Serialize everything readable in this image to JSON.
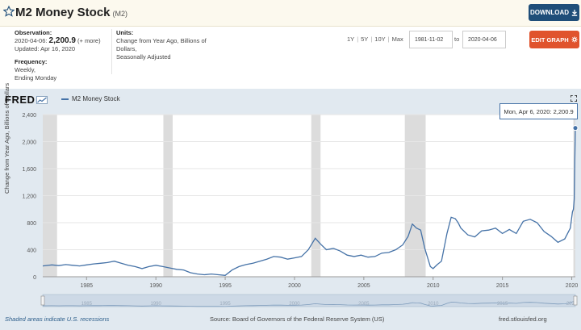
{
  "header": {
    "title": "M2 Money Stock",
    "series_code": "(M2)",
    "download_label": "DOWNLOAD",
    "colors": {
      "header_bg": "#fcf9ee",
      "download_bg": "#1f4e79"
    }
  },
  "meta": {
    "observation_label": "Observation:",
    "observation_date": "2020-04-06:",
    "observation_value": "2,200.9",
    "observation_more": "(+ more)",
    "updated": "Updated: Apr 16, 2020",
    "frequency_label": "Frequency:",
    "frequency_line1": "Weekly,",
    "frequency_line2": "Ending Monday",
    "units_label": "Units:",
    "units_line1": "Change from Year Ago, Billions of",
    "units_line2": "Dollars,",
    "units_line3": "Seasonally Adjusted"
  },
  "controls": {
    "ranges": [
      "1Y",
      "5Y",
      "10Y",
      "Max"
    ],
    "range_separator": "|",
    "start_date": "1981-11-02",
    "to_label": "to",
    "end_date": "2020-04-06",
    "edit_label": "EDIT GRAPH",
    "colors": {
      "edit_bg": "#e0532d"
    }
  },
  "brand": {
    "logo_text": "FRED"
  },
  "tooltip": {
    "text": "Mon, Apr 6, 2020: 2,200.9"
  },
  "footer": {
    "recessions_note": "Shaded areas indicate U.S. recessions",
    "source": "Source: Board of Governors of the Federal Reserve System (US)",
    "site": "fred.stlouisfed.org"
  },
  "chart_data": {
    "type": "line",
    "ylabel": "Change from Year Ago, Billions of Dollars",
    "ylim": [
      0,
      2400
    ],
    "yticks": [
      "0",
      "400",
      "800",
      "1,200",
      "1,600",
      "2,000",
      "2,400"
    ],
    "xlim": [
      1981.84,
      2020.26
    ],
    "xticks": [
      "1985",
      "1990",
      "1995",
      "2000",
      "2005",
      "2010",
      "2015",
      "2020"
    ],
    "grid": true,
    "legend_position": "top-left",
    "series": [
      {
        "name": "M2 Money Stock",
        "color": "#4572a7",
        "x": [
          1981.84,
          1982.5,
          1983.0,
          1983.5,
          1984.0,
          1984.5,
          1985.0,
          1985.5,
          1986.0,
          1986.5,
          1987.0,
          1987.5,
          1988.0,
          1988.5,
          1989.0,
          1989.5,
          1990.0,
          1990.5,
          1991.0,
          1991.5,
          1992.0,
          1992.5,
          1993.0,
          1993.5,
          1994.0,
          1994.5,
          1995.0,
          1995.5,
          1996.0,
          1996.5,
          1997.0,
          1997.5,
          1998.0,
          1998.5,
          1999.0,
          1999.5,
          2000.0,
          2000.5,
          2001.0,
          2001.5,
          2001.9,
          2002.3,
          2002.8,
          2003.3,
          2003.8,
          2004.3,
          2004.8,
          2005.3,
          2005.8,
          2006.3,
          2006.8,
          2007.3,
          2007.8,
          2008.2,
          2008.5,
          2008.8,
          2009.1,
          2009.4,
          2009.8,
          2010.0,
          2010.3,
          2010.6,
          2011.0,
          2011.3,
          2011.6,
          2011.8,
          2012.0,
          2012.5,
          2013.0,
          2013.5,
          2014.0,
          2014.5,
          2015.0,
          2015.5,
          2016.0,
          2016.5,
          2017.0,
          2017.5,
          2018.0,
          2018.5,
          2019.0,
          2019.5,
          2019.9,
          2020.05,
          2020.12,
          2020.18,
          2020.22,
          2020.26
        ],
        "y": [
          160,
          175,
          165,
          180,
          170,
          160,
          175,
          190,
          200,
          210,
          230,
          200,
          170,
          150,
          120,
          150,
          170,
          150,
          130,
          110,
          100,
          60,
          40,
          30,
          40,
          30,
          20,
          100,
          150,
          180,
          200,
          230,
          260,
          300,
          290,
          260,
          280,
          300,
          400,
          570,
          480,
          400,
          420,
          380,
          320,
          300,
          320,
          290,
          300,
          350,
          360,
          400,
          470,
          600,
          780,
          720,
          690,
          420,
          150,
          120,
          180,
          230,
          640,
          880,
          860,
          800,
          720,
          620,
          590,
          680,
          690,
          720,
          640,
          700,
          640,
          820,
          850,
          800,
          670,
          600,
          510,
          560,
          720,
          960,
          1000,
          1150,
          1700,
          2200.9
        ]
      }
    ],
    "recessions": [
      [
        1981.84,
        1982.87
      ],
      [
        1990.54,
        1991.21
      ],
      [
        2001.21,
        2001.88
      ],
      [
        2007.96,
        2009.46
      ],
      [
        2020.12,
        2020.26
      ]
    ],
    "annotation": "Mon, Apr 6, 2020: 2,200.9"
  }
}
